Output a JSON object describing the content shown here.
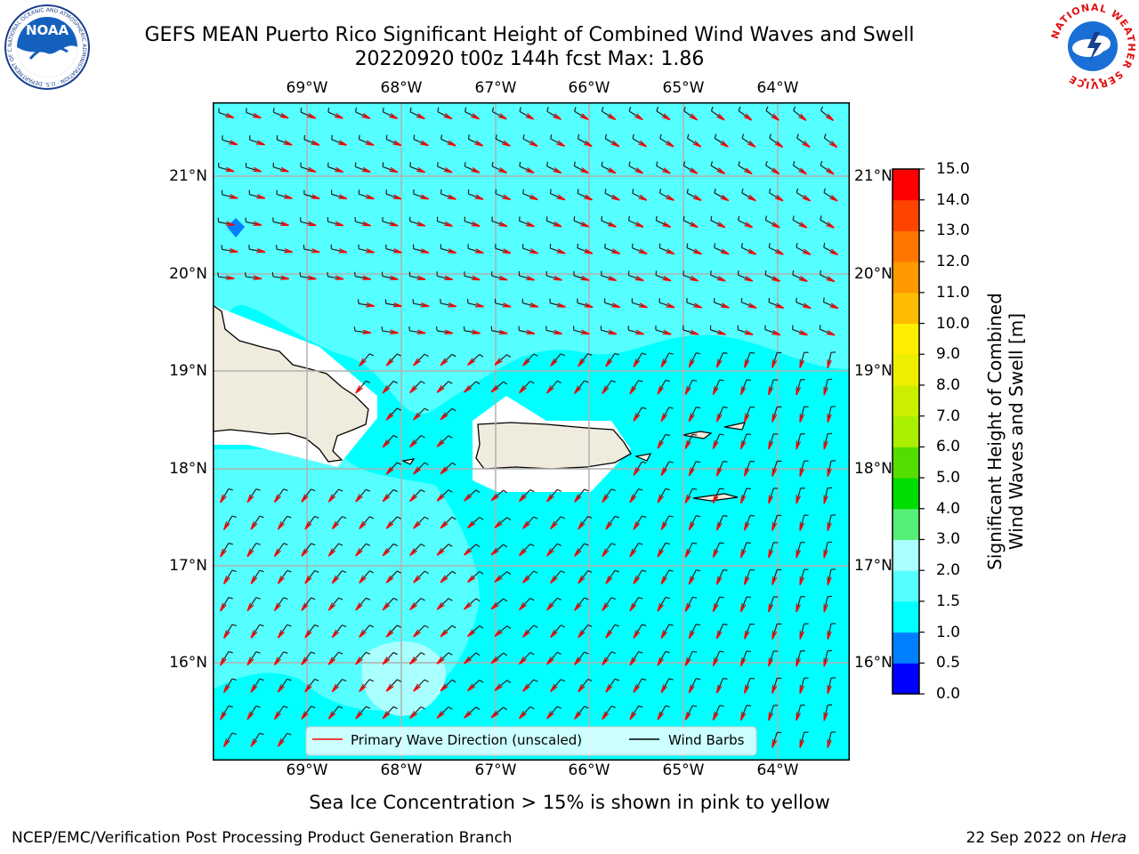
{
  "title": {
    "line1": "GEFS MEAN Puerto Rico Significant Height of Combined Wind Waves and Swell",
    "line2": "20220920 t00z 144h fcst   Max: 1.86"
  },
  "logos": {
    "noaa_text": "NOAA",
    "noaa_ring": "NATIONAL OCEANIC AND ATMOSPHERIC ADMINISTRATION · U.S. DEPARTMENT OF COMMERCE",
    "nws_ring": "NATIONAL WEATHER SERVICE"
  },
  "map": {
    "lon_labels": [
      "69°W",
      "68°W",
      "67°W",
      "66°W",
      "65°W",
      "64°W"
    ],
    "lat_labels": [
      "21°N",
      "20°N",
      "19°N",
      "18°N",
      "17°N",
      "16°N"
    ],
    "legend": {
      "primary_wave": "Primary Wave Direction (unscaled)",
      "wind_barbs": "Wind Barbs",
      "wave_color": "#ff0000",
      "barb_color": "#000000"
    },
    "colors": {
      "sea_main": "#00ffff",
      "sea_light": "#55ffff",
      "sea_lighter": "#aaffff",
      "land": "#efecdd",
      "blue_patch": "#0080ff",
      "grid": "#b0b0b0"
    }
  },
  "colorbar": {
    "title_line1": "Significant Height of Combined",
    "title_line2": "Wind Waves and Swell [m]",
    "ticks": [
      "15.0",
      "14.0",
      "13.0",
      "12.0",
      "11.0",
      "10.0",
      "9.0",
      "8.0",
      "7.0",
      "6.0",
      "5.0",
      "4.0",
      "3.0",
      "2.0",
      "1.5",
      "1.0",
      "0.5",
      "0.0"
    ],
    "levels": [
      {
        "from": "0.0",
        "to": "0.5",
        "color": "#0000ff"
      },
      {
        "from": "0.5",
        "to": "1.0",
        "color": "#0080ff"
      },
      {
        "from": "1.0",
        "to": "1.5",
        "color": "#00ffff"
      },
      {
        "from": "1.5",
        "to": "2.0",
        "color": "#55ffff"
      },
      {
        "from": "2.0",
        "to": "3.0",
        "color": "#aaffff"
      },
      {
        "from": "3.0",
        "to": "4.0",
        "color": "#55ee77"
      },
      {
        "from": "4.0",
        "to": "5.0",
        "color": "#00dd00"
      },
      {
        "from": "5.0",
        "to": "6.0",
        "color": "#55dd00"
      },
      {
        "from": "6.0",
        "to": "7.0",
        "color": "#aaee00"
      },
      {
        "from": "7.0",
        "to": "8.0",
        "color": "#ccee00"
      },
      {
        "from": "8.0",
        "to": "9.0",
        "color": "#eeee00"
      },
      {
        "from": "9.0",
        "to": "10.0",
        "color": "#ffee00"
      },
      {
        "from": "10.0",
        "to": "11.0",
        "color": "#ffbb00"
      },
      {
        "from": "11.0",
        "to": "12.0",
        "color": "#ff9900"
      },
      {
        "from": "12.0",
        "to": "13.0",
        "color": "#ff7700"
      },
      {
        "from": "13.0",
        "to": "14.0",
        "color": "#ff4400"
      },
      {
        "from": "14.0",
        "to": "15.0",
        "color": "#ff0000"
      }
    ]
  },
  "note": "Sea Ice Concentration > 15% is shown in pink to yellow",
  "footer": {
    "left": "NCEP/EMC/Verification Post Processing Product Generation Branch",
    "right_date": "22 Sep 2022 on ",
    "right_host": "Hera"
  }
}
